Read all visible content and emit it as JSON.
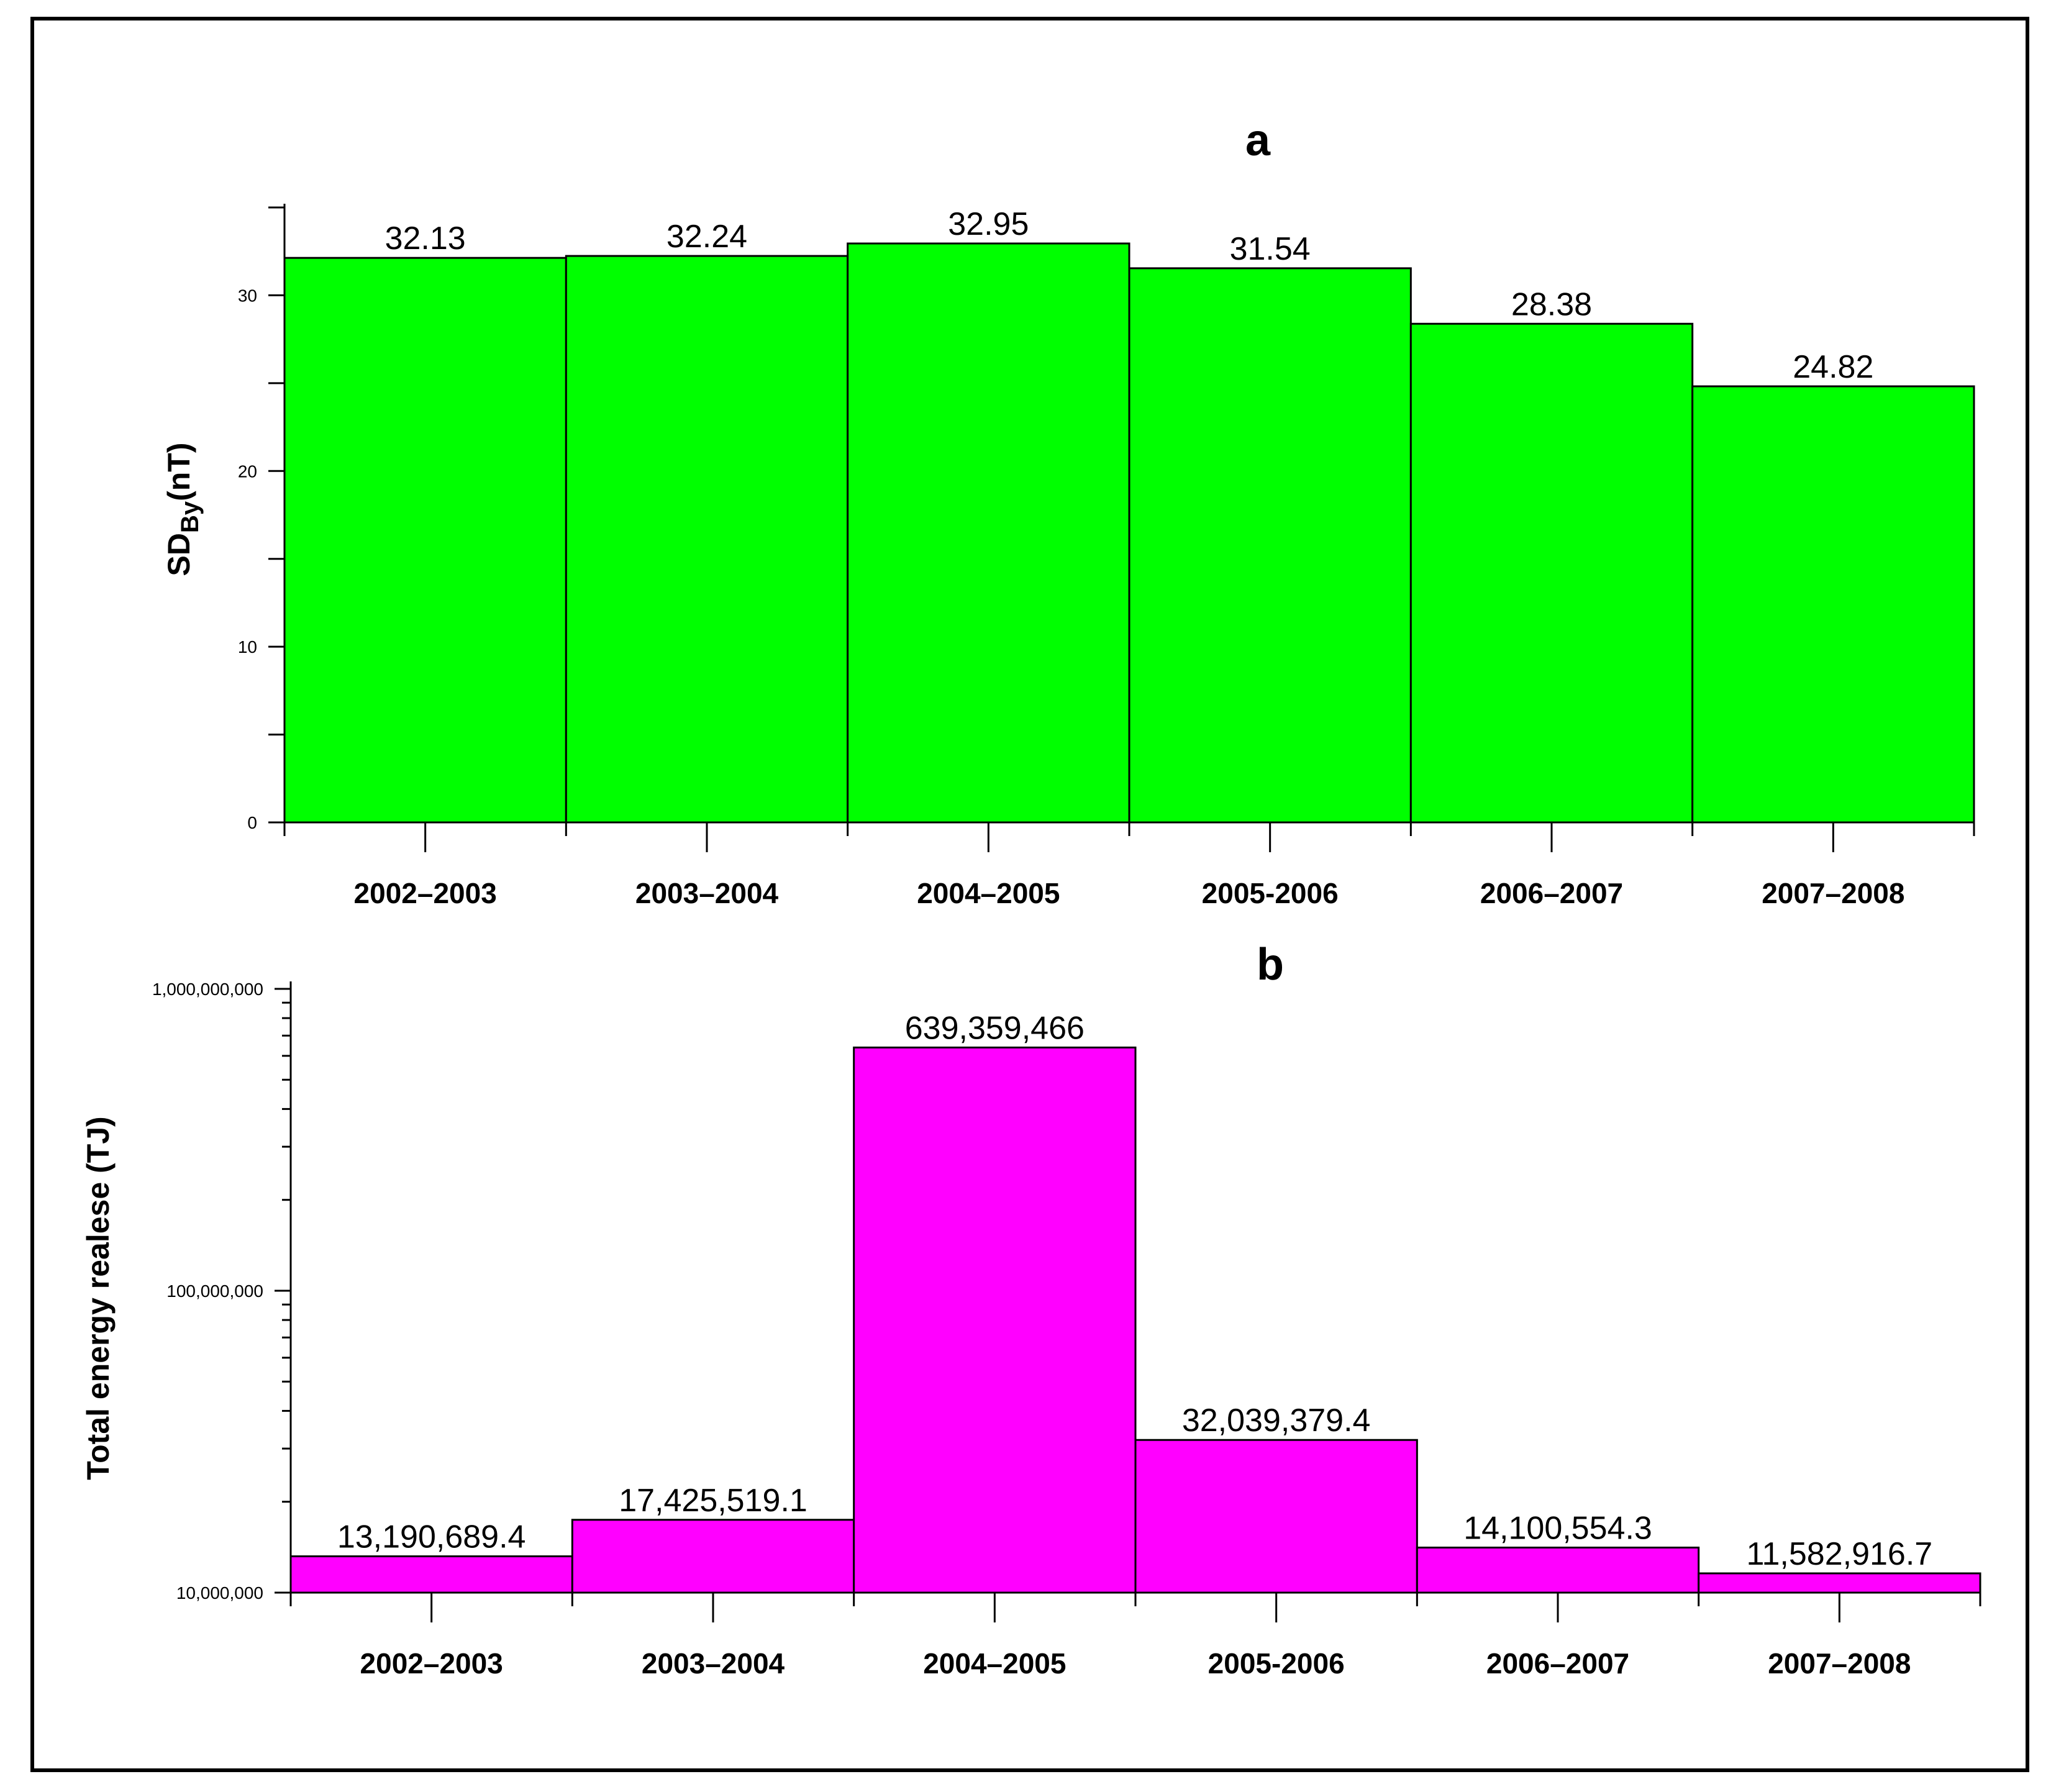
{
  "chart_data": [
    {
      "type": "bar",
      "title": "a",
      "ylabel": "SD",
      "ylabel_sub": "By",
      "ylabel_suffix": "(nT)",
      "categories": [
        "2002–2003",
        "2003–2004",
        "2004–2005",
        "2005-2006",
        "2006–2007",
        "2007–2008"
      ],
      "values": [
        32.13,
        32.24,
        32.95,
        31.54,
        28.38,
        24.82
      ],
      "value_labels": [
        "32.13",
        "32.24",
        "32.95",
        "31.54",
        "28.38",
        "24.82"
      ],
      "ylim": [
        0,
        35
      ],
      "yticks": [
        0,
        10,
        20,
        30
      ],
      "ytick_labels": [
        "0",
        "10",
        "20",
        "30"
      ],
      "bar_color": "#00ff00",
      "grid": false,
      "legend": false
    },
    {
      "type": "bar",
      "title": "b",
      "ylabel": "Total energy realese (TJ)",
      "yscale": "log",
      "categories": [
        "2002–2003",
        "2003–2004",
        "2004–2005",
        "2005-2006",
        "2006–2007",
        "2007–2008"
      ],
      "values": [
        13190689.4,
        17425519.1,
        639359466,
        32039379.4,
        14100554.3,
        11582916.7
      ],
      "value_labels": [
        "13,190,689.4",
        "17,425,519.1",
        "639,359,466",
        "32,039,379.4",
        "14,100,554.3",
        "11,582,916.7"
      ],
      "ylim": [
        10000000,
        1000000000
      ],
      "yticks": [
        10000000,
        100000000,
        1000000000
      ],
      "ytick_labels": [
        "10,000,000",
        "100,000,000",
        "1,000,000,000"
      ],
      "bar_color": "#ff00ff",
      "grid": false,
      "legend": false
    }
  ]
}
